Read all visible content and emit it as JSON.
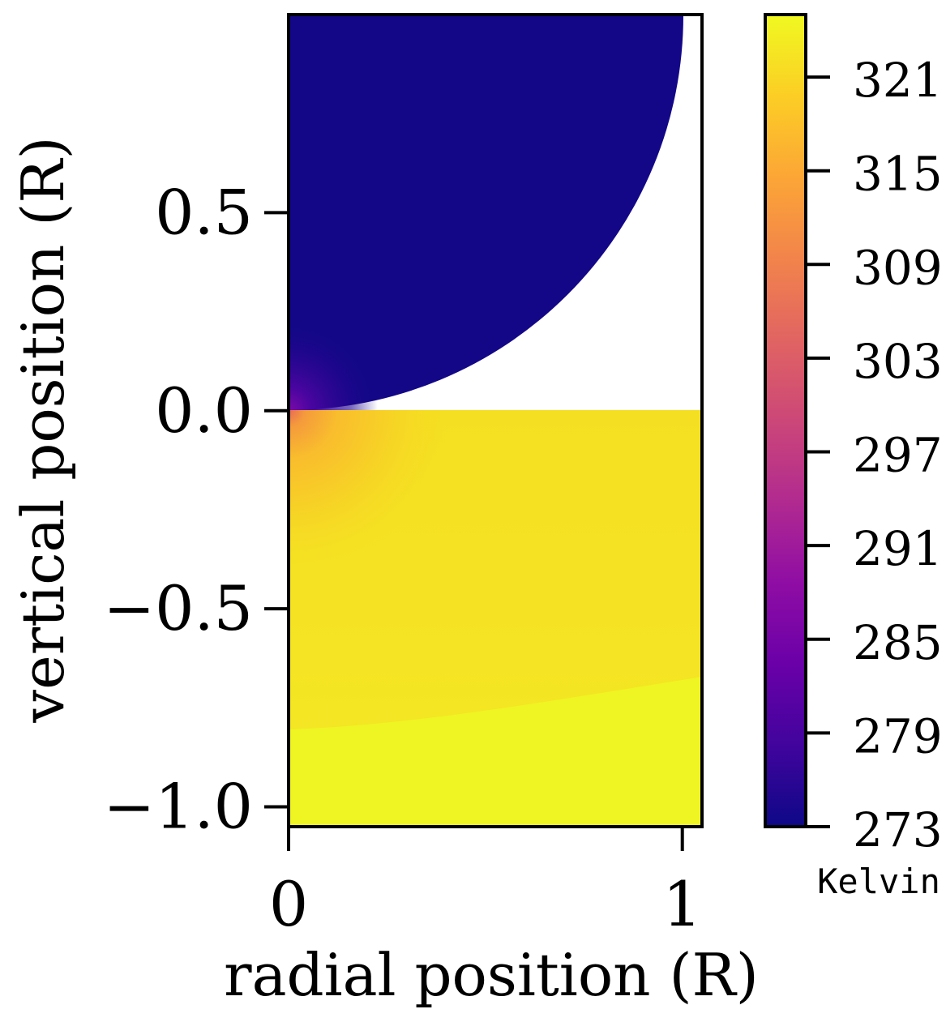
{
  "chart_data": {
    "type": "heatmap",
    "title": "",
    "xlabel": "radial position (R)",
    "ylabel": "vertical position (R)",
    "xlim": [
      0,
      1.05
    ],
    "ylim": [
      -1.05,
      1.0
    ],
    "x_ticks": [
      {
        "value": 0,
        "label": "0"
      },
      {
        "value": 1,
        "label": "1"
      }
    ],
    "y_ticks": [
      {
        "value": 0.5,
        "label": "0.5"
      },
      {
        "value": 0.0,
        "label": "0.0"
      },
      {
        "value": -0.5,
        "label": "−0.5"
      },
      {
        "value": -1.0,
        "label": "−1.0"
      }
    ],
    "colorbar": {
      "label": "Kelvin",
      "range": [
        273,
        325
      ],
      "colormap": "plasma",
      "ticks": [
        {
          "value": 273,
          "label": "273"
        },
        {
          "value": 279,
          "label": "279"
        },
        {
          "value": 285,
          "label": "285"
        },
        {
          "value": 291,
          "label": "291"
        },
        {
          "value": 297,
          "label": "297"
        },
        {
          "value": 303,
          "label": "303"
        },
        {
          "value": 309,
          "label": "309"
        },
        {
          "value": 315,
          "label": "315"
        },
        {
          "value": 321,
          "label": "321"
        }
      ]
    },
    "regions": [
      {
        "name": "upper-domain",
        "shape": "quarter-circle",
        "center": [
          0,
          1.0
        ],
        "radius": 1.0,
        "temperature": 275
      },
      {
        "name": "lower-domain",
        "shape": "rectangle",
        "x_range": [
          0,
          1.05
        ],
        "y_range": [
          -1.05,
          0
        ],
        "temperature_range": [
          318,
          324
        ]
      },
      {
        "name": "hotspot-origin",
        "center": [
          0,
          0
        ],
        "temperature_range": [
          285,
          320
        ]
      }
    ],
    "colors": {
      "upper": "#130787",
      "lower_mid": "#f5e022",
      "lower_bottom": "#eff523",
      "hot_ring": "#f8c92a",
      "frame": "#000000"
    }
  }
}
